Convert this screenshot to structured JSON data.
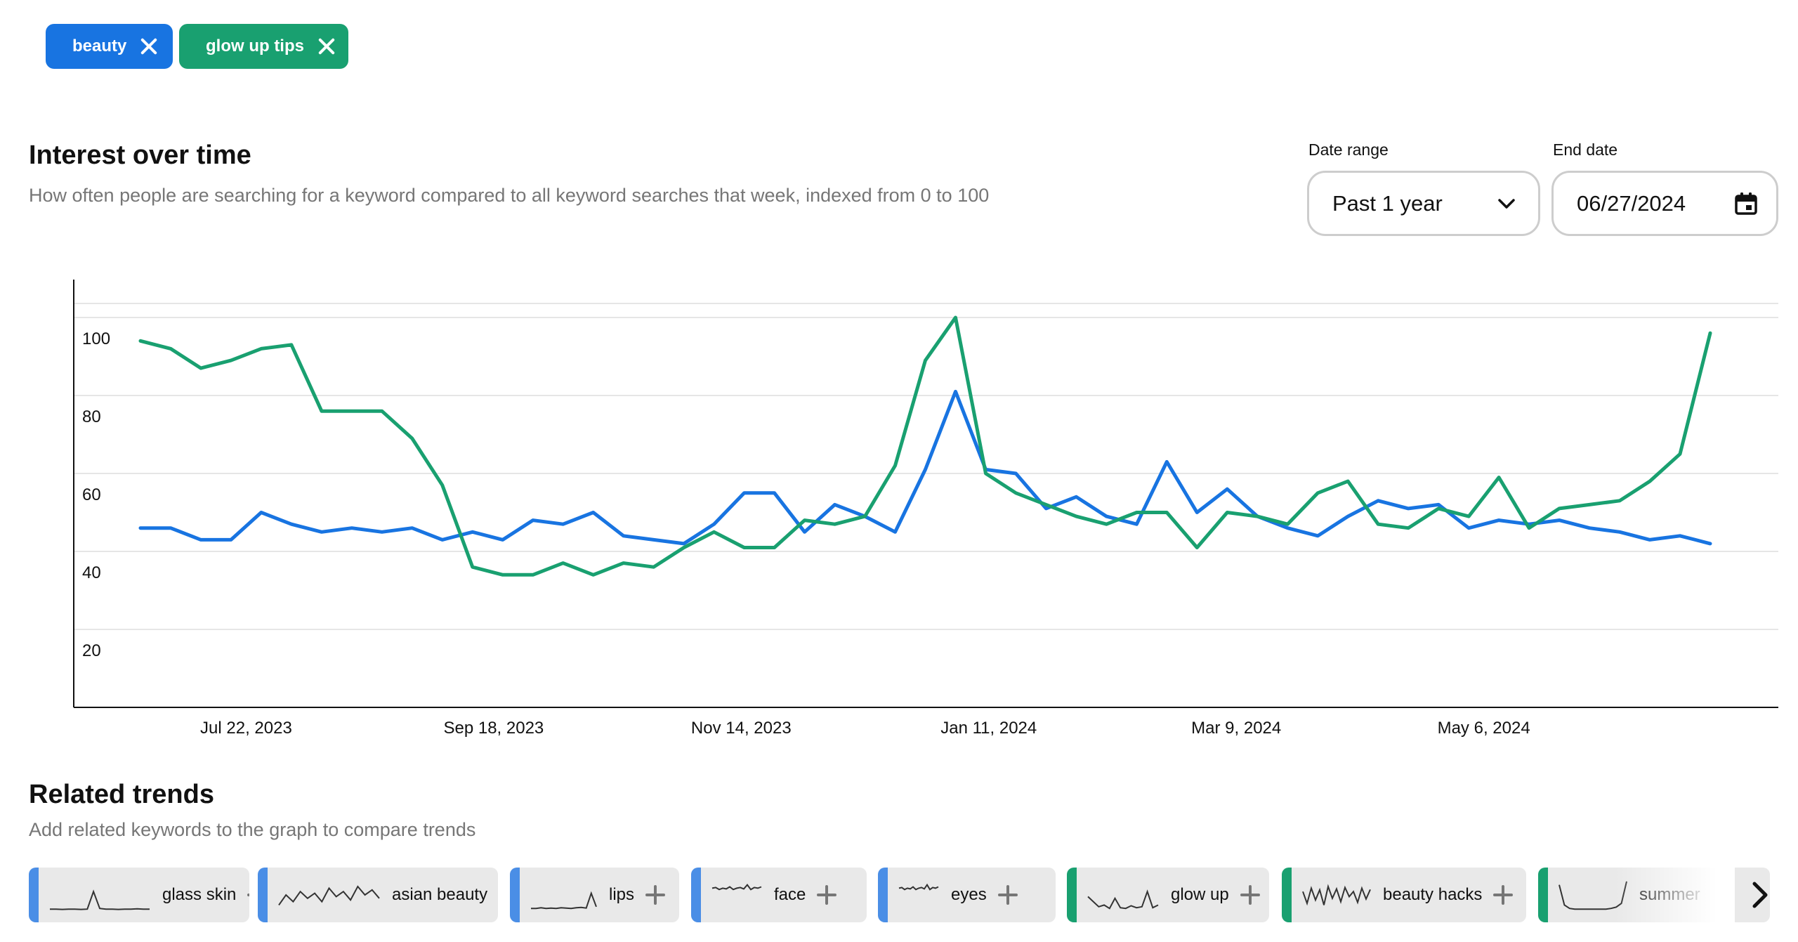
{
  "keywords": [
    {
      "label": "beauty",
      "color": "#1874e1"
    },
    {
      "label": "glow up tips",
      "color": "#19a070"
    }
  ],
  "interest": {
    "title": "Interest over time",
    "subtitle": "How often people are searching for a keyword compared to all keyword searches that week, indexed from 0 to 100"
  },
  "controls": {
    "date_range_label": "Date range",
    "date_range_value": "Past 1 year",
    "end_date_label": "End date",
    "end_date_value": "06/27/2024"
  },
  "chart_data": {
    "type": "line",
    "title": "",
    "xlabel": "",
    "ylabel": "",
    "ylim": [
      0,
      110
    ],
    "y_ticks": [
      20,
      40,
      60,
      80,
      100
    ],
    "x_ticks": [
      "Jul 22, 2023",
      "Sep 18, 2023",
      "Nov 14, 2023",
      "Jan 11, 2024",
      "Mar 9, 2024",
      "May 6, 2024"
    ],
    "x_tick_index": [
      3.5,
      11.7,
      19.9,
      28.1,
      36.3,
      44.5
    ],
    "grid": true,
    "series": [
      {
        "name": "beauty",
        "color": "#1874e1",
        "values": [
          46,
          46,
          43,
          43,
          50,
          47,
          45,
          46,
          45,
          46,
          43,
          45,
          43,
          48,
          47,
          50,
          44,
          43,
          42,
          47,
          55,
          55,
          45,
          52,
          49,
          45,
          61,
          81,
          61,
          60,
          51,
          54,
          49,
          47,
          63,
          50,
          56,
          49,
          46,
          44,
          49,
          53,
          51,
          52,
          46,
          48,
          47,
          48,
          46,
          45,
          43,
          44,
          42
        ]
      },
      {
        "name": "glow up tips",
        "color": "#19a070",
        "values": [
          94,
          92,
          87,
          89,
          92,
          93,
          76,
          76,
          76,
          69,
          57,
          36,
          34,
          34,
          37,
          34,
          37,
          36,
          41,
          45,
          41,
          41,
          48,
          47,
          49,
          62,
          89,
          100,
          60,
          55,
          52,
          49,
          47,
          50,
          50,
          41,
          50,
          49,
          47,
          55,
          58,
          47,
          46,
          51,
          49,
          59,
          46,
          51,
          52,
          53,
          58,
          65,
          96
        ]
      }
    ]
  },
  "related": {
    "title": "Related trends",
    "subtitle": "Add related keywords to the graph to compare trends",
    "items": [
      {
        "label": "glass skin",
        "color": "#4a8ee6",
        "spark": "flat-spike"
      },
      {
        "label": "asian beauty",
        "color": "#4a8ee6",
        "spark": "jagged"
      },
      {
        "label": "lips",
        "color": "#4a8ee6",
        "spark": "flat-end-spike"
      },
      {
        "label": "face",
        "color": "#4a8ee6",
        "spark": "high-wavy"
      },
      {
        "label": "eyes",
        "color": "#4a8ee6",
        "spark": "high-wavy"
      },
      {
        "label": "glow up",
        "color": "#19a070",
        "spark": "dip-spike"
      },
      {
        "label": "beauty hacks",
        "color": "#19a070",
        "spark": "jagged-dense"
      },
      {
        "label": "summer",
        "color": "#19a070",
        "spark": "u-shape"
      }
    ]
  }
}
